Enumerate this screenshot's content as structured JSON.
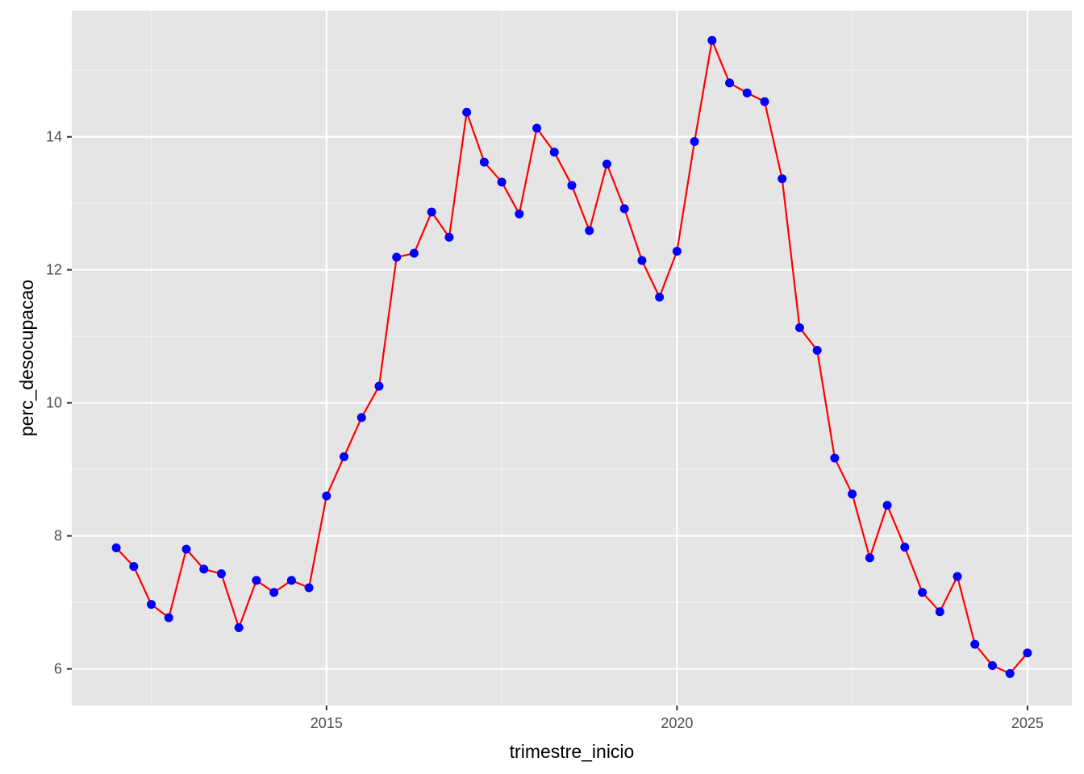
{
  "chart_data": {
    "type": "line",
    "title": "",
    "xlabel": "trimestre_inicio",
    "ylabel": "perc_desocupacao",
    "x_ticks": [
      2015,
      2020,
      2025
    ],
    "y_ticks": [
      6,
      8,
      10,
      12,
      14
    ],
    "xlim": [
      2011.366,
      2025.634
    ],
    "ylim": [
      5.45,
      15.9
    ],
    "grid": true,
    "line_color": "#FF0000",
    "point_color": "#0000FF",
    "panel_background": "#E5E5E5",
    "x": [
      2012.0,
      2012.25,
      2012.5,
      2012.75,
      2013.0,
      2013.25,
      2013.5,
      2013.75,
      2014.0,
      2014.25,
      2014.5,
      2014.75,
      2015.0,
      2015.25,
      2015.5,
      2015.75,
      2016.0,
      2016.25,
      2016.5,
      2016.75,
      2017.0,
      2017.25,
      2017.5,
      2017.75,
      2018.0,
      2018.25,
      2018.5,
      2018.75,
      2019.0,
      2019.25,
      2019.5,
      2019.75,
      2020.0,
      2020.25,
      2020.5,
      2020.75,
      2021.0,
      2021.25,
      2021.5,
      2021.75,
      2022.0,
      2022.25,
      2022.5,
      2022.75,
      2023.0,
      2023.25,
      2023.5,
      2023.75,
      2024.0,
      2024.25,
      2024.5,
      2024.75,
      2025.0
    ],
    "values": [
      7.82,
      7.54,
      6.97,
      6.77,
      7.8,
      7.5,
      7.43,
      6.62,
      7.33,
      7.15,
      7.33,
      7.22,
      8.6,
      9.19,
      9.78,
      10.25,
      12.19,
      12.25,
      12.87,
      12.49,
      14.37,
      13.62,
      13.32,
      12.84,
      14.13,
      13.77,
      13.27,
      12.59,
      13.59,
      12.92,
      12.14,
      11.59,
      12.28,
      13.93,
      15.45,
      14.81,
      14.66,
      14.53,
      13.37,
      11.13,
      10.79,
      9.17,
      8.63,
      7.67,
      8.46,
      7.83,
      7.15,
      6.86,
      7.39,
      6.37,
      6.05,
      5.93,
      6.24
    ]
  }
}
